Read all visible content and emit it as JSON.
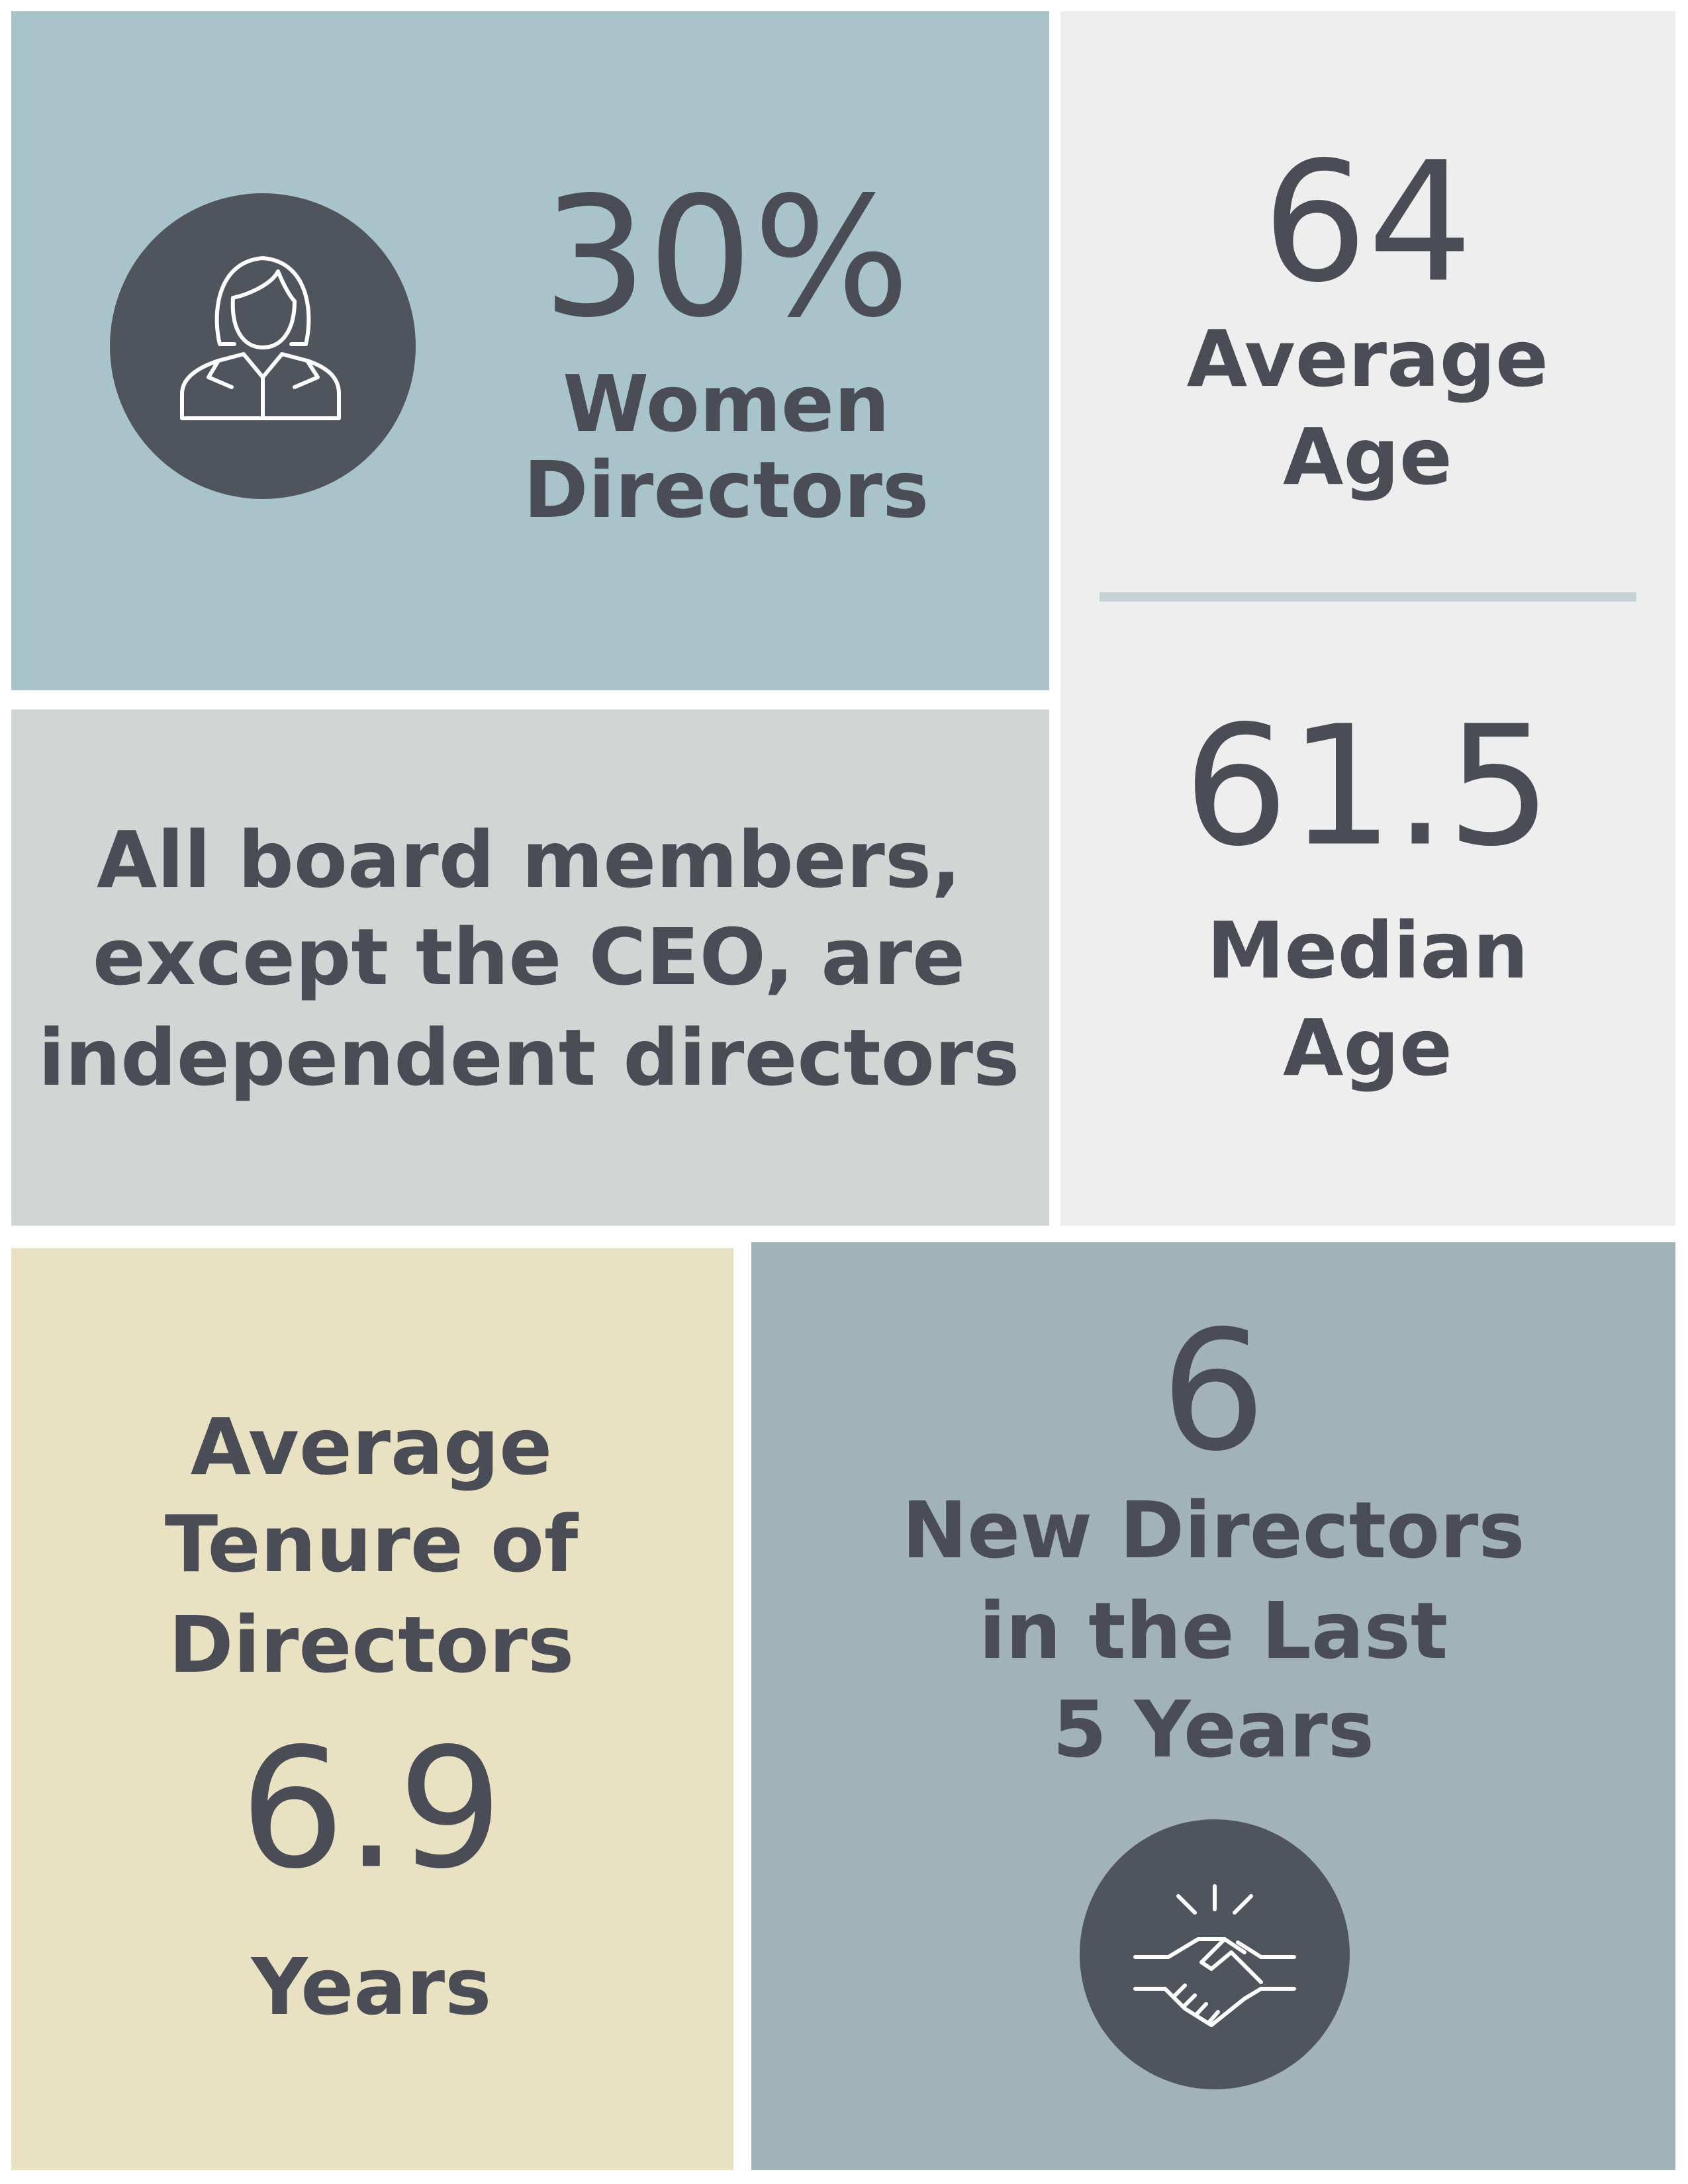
{
  "women": {
    "value": "30%",
    "label": [
      "Women",
      "Directors"
    ]
  },
  "average_age": {
    "value": "64",
    "label": [
      "Average",
      "Age"
    ]
  },
  "median_age": {
    "value": "61.5",
    "label": [
      "Median",
      "Age"
    ]
  },
  "independence": {
    "text": [
      "All board members,",
      "except the CEO, are",
      "independent directors"
    ]
  },
  "tenure": {
    "label": [
      "Average",
      "Tenure of",
      "Directors"
    ],
    "value": "6.9",
    "unit": "Years"
  },
  "new_directors": {
    "value": "6",
    "label": [
      "New Directors",
      "in the Last",
      "5 Years"
    ]
  }
}
